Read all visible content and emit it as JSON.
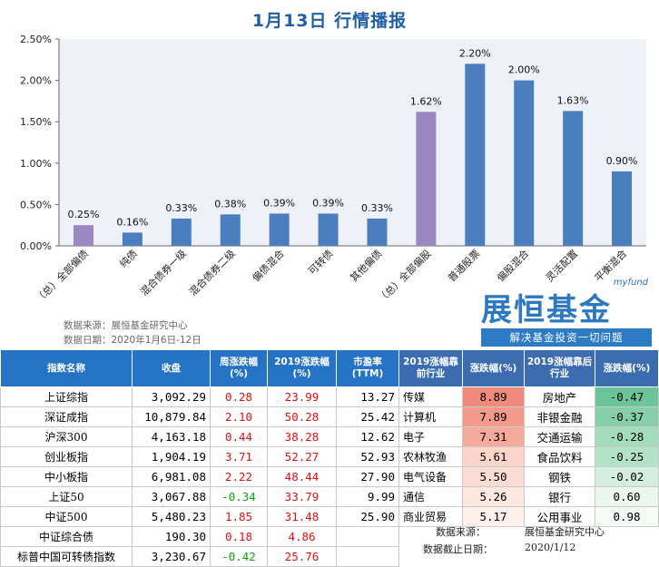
{
  "title": "1月13日  行情播报",
  "chart_data": {
    "type": "bar",
    "categories": [
      "（总）全部偏债",
      "纯债",
      "混合债券一级",
      "混合债券二级",
      "偏债混合",
      "可转债",
      "其他偏债",
      "（总）全部偏股",
      "普通股票",
      "偏股混合",
      "灵活配置",
      "平衡混合"
    ],
    "values": [
      0.25,
      0.16,
      0.33,
      0.38,
      0.39,
      0.39,
      0.33,
      1.62,
      2.2,
      2.0,
      1.63,
      0.9
    ],
    "value_labels": [
      "0.25%",
      "0.16%",
      "0.33%",
      "0.38%",
      "0.39%",
      "0.39%",
      "0.33%",
      "1.62%",
      "2.20%",
      "2.00%",
      "1.63%",
      "0.90%"
    ],
    "bar_colors": [
      "#9b87c1",
      "#4a7ebf",
      "#4a7ebf",
      "#4a7ebf",
      "#4a7ebf",
      "#4a7ebf",
      "#4a7ebf",
      "#9b87c1",
      "#4a7ebf",
      "#4a7ebf",
      "#4a7ebf",
      "#4a7ebf"
    ],
    "yticks": [
      "0.00%",
      "0.50%",
      "1.00%",
      "1.50%",
      "2.00%",
      "2.50%"
    ],
    "ylim": [
      0,
      2.5
    ],
    "grid": false
  },
  "chart_source": "数据来源：展恒基金研究中心",
  "chart_date": "数据日期：2020年1月6日-12日",
  "logo": {
    "mini": "myfund",
    "main": "展恒基金",
    "slogan": "解决基金投资一切问题"
  },
  "table": {
    "headers": [
      "指数名称",
      "收盘",
      "周涨跌幅(%)",
      "2019涨跌幅(%)",
      "市盈率(TTM)",
      "2019涨幅靠前行业",
      "涨跌幅(%)",
      "2019涨幅靠后行业",
      "涨跌幅(%)"
    ],
    "index_rows": [
      {
        "name": "上证综指",
        "close": "3,092.29",
        "week": "0.28",
        "y2019": "23.99",
        "pe": "13.27"
      },
      {
        "name": "深证成指",
        "close": "10,879.84",
        "week": "2.10",
        "y2019": "50.28",
        "pe": "25.42"
      },
      {
        "name": "沪深300",
        "close": "4,163.18",
        "week": "0.44",
        "y2019": "38.28",
        "pe": "12.62"
      },
      {
        "name": "创业板指",
        "close": "1,904.19",
        "week": "3.71",
        "y2019": "52.27",
        "pe": "52.93"
      },
      {
        "name": "中小板指",
        "close": "6,981.08",
        "week": "2.22",
        "y2019": "48.44",
        "pe": "27.90"
      },
      {
        "name": "上证50",
        "close": "3,067.88",
        "week": "-0.34",
        "y2019": "33.79",
        "pe": "9.99"
      },
      {
        "name": "中证500",
        "close": "5,480.23",
        "week": "1.85",
        "y2019": "31.48",
        "pe": "25.90"
      },
      {
        "name": "中证综合债",
        "close": "190.30",
        "week": "0.18",
        "y2019": "4.86",
        "pe": ""
      },
      {
        "name": "标普中国可转债指数",
        "close": "3,230.67",
        "week": "-0.42",
        "y2019": "25.76",
        "pe": ""
      }
    ],
    "top_industries": [
      {
        "name": "传媒",
        "chg": "8.89",
        "color": "#f08a7a"
      },
      {
        "name": "计算机",
        "chg": "7.89",
        "color": "#f39a8a"
      },
      {
        "name": "电子",
        "chg": "7.31",
        "color": "#f5aa9a"
      },
      {
        "name": "农林牧渔",
        "chg": "5.61",
        "color": "#fbd5c9"
      },
      {
        "name": "电气设备",
        "chg": "5.50",
        "color": "#fcdcd2"
      },
      {
        "name": "通信",
        "chg": "5.26",
        "color": "#fde7df"
      },
      {
        "name": "商业贸易",
        "chg": "5.17",
        "color": "#fef0eb"
      }
    ],
    "bottom_industries": [
      {
        "name": "房地产",
        "chg": "-0.47",
        "color": "#6bc49a"
      },
      {
        "name": "非银金融",
        "chg": "-0.37",
        "color": "#86cfa9"
      },
      {
        "name": "交通运输",
        "chg": "-0.28",
        "color": "#a3dbbd"
      },
      {
        "name": "食品饮料",
        "chg": "-0.25",
        "color": "#b4e2c8"
      },
      {
        "name": "钢铁",
        "chg": "-0.02",
        "color": "#d3eedd"
      },
      {
        "name": "银行",
        "chg": "0.60",
        "color": "#eaf6ee"
      },
      {
        "name": "公用事业",
        "chg": "0.98",
        "color": "#f4faf6"
      }
    ]
  },
  "table_source_label": "数据来源：",
  "table_source_value": "展恒基金研究中心",
  "table_date_label": "数据截止日期：",
  "table_date_value": "2020/1/12"
}
